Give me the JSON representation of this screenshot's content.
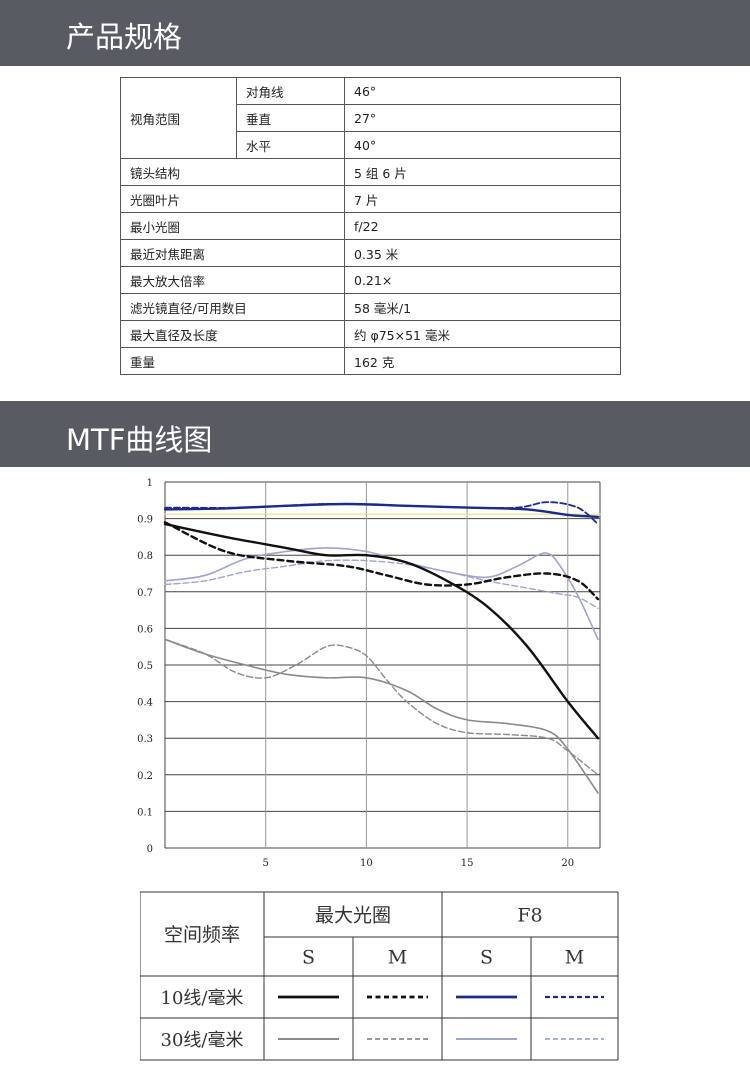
{
  "header1": {
    "title": "产品规格"
  },
  "specs": {
    "view_angle_label": "视角范围",
    "view_angle": [
      {
        "label": "对角线",
        "value": "46°"
      },
      {
        "label": "垂直",
        "value": "27°"
      },
      {
        "label": "水平",
        "value": "40°"
      }
    ],
    "rows": [
      {
        "label": "镜头结构",
        "value": "5 组 6 片"
      },
      {
        "label": "光圈叶片",
        "value": "7 片"
      },
      {
        "label": "最小光圈",
        "value": "f/22"
      },
      {
        "label": "最近对焦距离",
        "value": "0.35 米"
      },
      {
        "label": "最大放大倍率",
        "value": "0.21×"
      },
      {
        "label": "滤光镜直径/可用数目",
        "value": "58 毫米/1"
      },
      {
        "label": "最大直径及长度",
        "value": "约 φ75×51 毫米"
      },
      {
        "label": "重量",
        "value": "162 克"
      }
    ]
  },
  "header2": {
    "title": "MTF曲线图"
  },
  "colors": {
    "banner": "#595b63",
    "black_line": "#111111",
    "gray_line": "#8a8a8a",
    "blue_line": "#1c2a8c",
    "light_blue_line": "#9fa3cf",
    "yellow_line": "#e8e27a"
  },
  "chart_data": {
    "type": "line",
    "title": "",
    "xlabel": "",
    "ylabel": "",
    "xlim": [
      0,
      21.6
    ],
    "ylim": [
      0,
      1
    ],
    "x_ticks": [
      "5",
      "10",
      "15",
      "20"
    ],
    "y_ticks": [
      "0",
      "0.1",
      "0.2",
      "0.3",
      "0.4",
      "0.5",
      "0.6",
      "0.7",
      "0.8",
      "0.9",
      "1"
    ],
    "grid": true,
    "series": [
      {
        "key": "open_10_S",
        "color": "#111111",
        "style": "solid",
        "width": 2.4,
        "points": [
          [
            0,
            0.885
          ],
          [
            3,
            0.85
          ],
          [
            6,
            0.82
          ],
          [
            8,
            0.8
          ],
          [
            10,
            0.8
          ],
          [
            12,
            0.78
          ],
          [
            14,
            0.73
          ],
          [
            16,
            0.66
          ],
          [
            18,
            0.55
          ],
          [
            20,
            0.4
          ],
          [
            21.5,
            0.3
          ]
        ]
      },
      {
        "key": "open_10_M",
        "color": "#111111",
        "style": "dash",
        "width": 2.4,
        "points": [
          [
            0,
            0.89
          ],
          [
            3,
            0.81
          ],
          [
            6,
            0.785
          ],
          [
            9,
            0.77
          ],
          [
            11,
            0.745
          ],
          [
            13,
            0.72
          ],
          [
            15,
            0.72
          ],
          [
            17,
            0.74
          ],
          [
            19,
            0.75
          ],
          [
            20.5,
            0.73
          ],
          [
            21.5,
            0.68
          ]
        ]
      },
      {
        "key": "f8_10_S",
        "color": "#1c2a8c",
        "style": "solid",
        "width": 2.4,
        "points": [
          [
            0,
            0.925
          ],
          [
            3,
            0.928
          ],
          [
            6,
            0.935
          ],
          [
            9,
            0.94
          ],
          [
            12,
            0.935
          ],
          [
            15,
            0.93
          ],
          [
            18,
            0.925
          ],
          [
            20,
            0.91
          ],
          [
            21.5,
            0.905
          ]
        ]
      },
      {
        "key": "f8_10_M",
        "color": "#1c2a8c",
        "style": "dash",
        "width": 1.8,
        "points": [
          [
            0,
            0.93
          ],
          [
            4,
            0.93
          ],
          [
            8,
            0.94
          ],
          [
            12,
            0.935
          ],
          [
            15,
            0.93
          ],
          [
            17.5,
            0.93
          ],
          [
            19,
            0.945
          ],
          [
            20.5,
            0.93
          ],
          [
            21.5,
            0.885
          ]
        ]
      },
      {
        "key": "open_30_S",
        "color": "#8a8a8a",
        "style": "solid",
        "width": 1.6,
        "points": [
          [
            0,
            0.57
          ],
          [
            2,
            0.53
          ],
          [
            4,
            0.5
          ],
          [
            6,
            0.475
          ],
          [
            8,
            0.465
          ],
          [
            10,
            0.465
          ],
          [
            12,
            0.43
          ],
          [
            13.5,
            0.38
          ],
          [
            15,
            0.35
          ],
          [
            17,
            0.34
          ],
          [
            19,
            0.32
          ],
          [
            20,
            0.27
          ],
          [
            21.5,
            0.15
          ]
        ]
      },
      {
        "key": "open_30_M",
        "color": "#8a8a8a",
        "style": "dash",
        "width": 1.4,
        "points": [
          [
            0,
            0.57
          ],
          [
            2,
            0.53
          ],
          [
            3.5,
            0.48
          ],
          [
            5,
            0.465
          ],
          [
            6.5,
            0.5
          ],
          [
            8,
            0.55
          ],
          [
            9,
            0.55
          ],
          [
            10,
            0.525
          ],
          [
            11,
            0.46
          ],
          [
            12,
            0.4
          ],
          [
            13.5,
            0.34
          ],
          [
            15,
            0.315
          ],
          [
            17,
            0.31
          ],
          [
            19,
            0.3
          ],
          [
            20,
            0.265
          ],
          [
            21.5,
            0.2
          ]
        ]
      },
      {
        "key": "f8_30_S",
        "color": "#9fa3cf",
        "style": "solid",
        "width": 1.6,
        "points": [
          [
            0,
            0.73
          ],
          [
            2,
            0.745
          ],
          [
            4,
            0.79
          ],
          [
            6,
            0.81
          ],
          [
            8,
            0.82
          ],
          [
            10,
            0.81
          ],
          [
            12,
            0.78
          ],
          [
            14,
            0.755
          ],
          [
            16,
            0.74
          ],
          [
            17.5,
            0.77
          ],
          [
            18.5,
            0.8
          ],
          [
            19,
            0.805
          ],
          [
            19.5,
            0.78
          ],
          [
            20.5,
            0.69
          ],
          [
            21.5,
            0.57
          ]
        ]
      },
      {
        "key": "f8_30_M",
        "color": "#9fa3cf",
        "style": "dash",
        "width": 1.4,
        "points": [
          [
            0,
            0.72
          ],
          [
            2,
            0.73
          ],
          [
            4,
            0.755
          ],
          [
            6,
            0.77
          ],
          [
            8,
            0.785
          ],
          [
            10,
            0.785
          ],
          [
            12,
            0.775
          ],
          [
            14,
            0.755
          ],
          [
            16,
            0.73
          ],
          [
            18,
            0.71
          ],
          [
            19.5,
            0.695
          ],
          [
            20.5,
            0.685
          ],
          [
            21.5,
            0.655
          ]
        ]
      },
      {
        "key": "reference",
        "color": "#e8e27a",
        "style": "solid",
        "width": 1.2,
        "points": [
          [
            0,
            0.912
          ],
          [
            21.6,
            0.912
          ]
        ]
      }
    ],
    "legend": {
      "placement": "bottom",
      "row_header": "空间频率",
      "groups": [
        "最大光圈",
        "F8"
      ],
      "subcols": [
        "S",
        "M",
        "S",
        "M"
      ],
      "rows": [
        {
          "label": "10线/毫米",
          "keys": [
            "open_10_S",
            "open_10_M",
            "f8_10_S",
            "f8_10_M"
          ]
        },
        {
          "label": "30线/毫米",
          "keys": [
            "open_30_S",
            "open_30_M",
            "f8_30_S",
            "f8_30_M"
          ]
        }
      ]
    }
  }
}
